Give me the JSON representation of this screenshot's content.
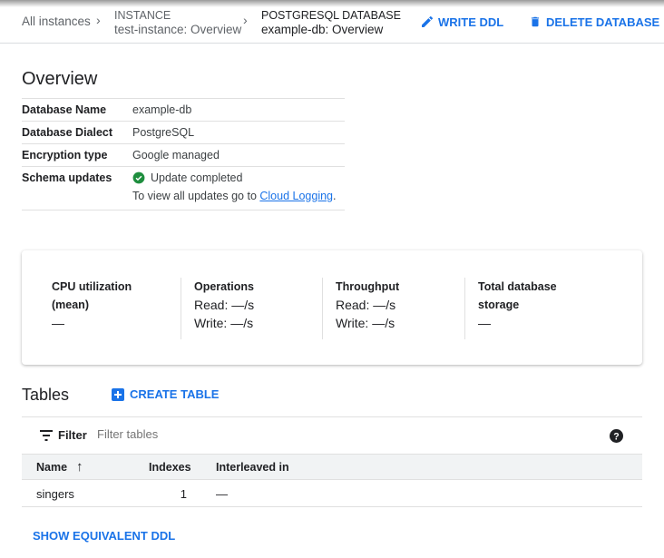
{
  "breadcrumb": {
    "root": "All instances",
    "instance_label": "INSTANCE",
    "instance_name": "test-instance: Overview",
    "db_label": "POSTGRESQL DATABASE",
    "db_name": "example-db: Overview"
  },
  "actions": {
    "write_ddl": "WRITE DDL",
    "delete_database": "DELETE DATABASE"
  },
  "overview": {
    "title": "Overview",
    "rows": [
      {
        "key": "Database Name",
        "value": "example-db"
      },
      {
        "key": "Database Dialect",
        "value": "PostgreSQL"
      },
      {
        "key": "Encryption type",
        "value": "Google managed"
      },
      {
        "key": "Schema updates",
        "value": "Update completed",
        "note": "To view all updates go to ",
        "link": "Cloud Logging",
        "note_end": "."
      }
    ]
  },
  "metrics": [
    {
      "title": "CPU utilization (mean)",
      "lines": [
        "—"
      ]
    },
    {
      "title": "Operations",
      "lines": [
        "Read: —/s",
        "Write: —/s"
      ]
    },
    {
      "title": "Throughput",
      "lines": [
        "Read: —/s",
        "Write: —/s"
      ]
    },
    {
      "title": "Total database storage",
      "lines": [
        "—"
      ]
    }
  ],
  "tables": {
    "title": "Tables",
    "create": "CREATE TABLE",
    "filter_label": "Filter",
    "filter_placeholder": "Filter tables",
    "columns": [
      "Name",
      "Indexes",
      "Interleaved in"
    ],
    "rows": [
      {
        "name": "singers",
        "indexes": "1",
        "interleaved": "—"
      }
    ],
    "show_ddl": "SHOW EQUIVALENT DDL"
  },
  "colors": {
    "accent": "#1a73e8",
    "success": "#1e8e3e"
  }
}
